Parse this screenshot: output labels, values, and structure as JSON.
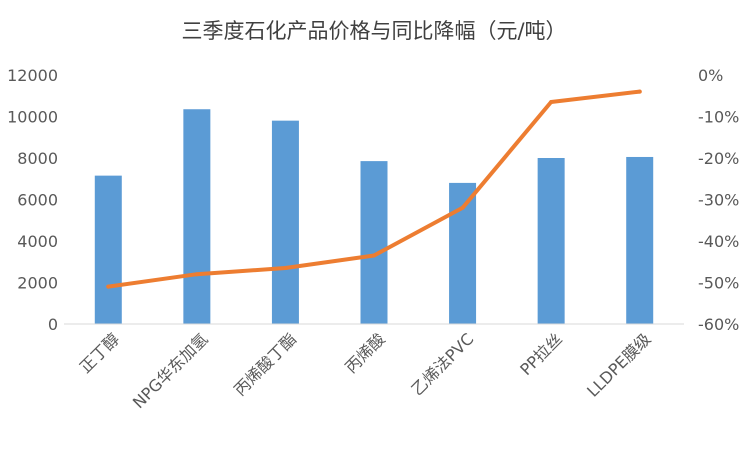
{
  "chart_data": {
    "type": "bar",
    "title": "三季度石化产品价格与同比降幅（元/吨）",
    "categories": [
      "正丁醇",
      "NPG华东加氢",
      "丙烯酸丁酯",
      "丙烯酸",
      "乙烯法PVC",
      "PP拉丝",
      "LLDPE膜级"
    ],
    "series": [
      {
        "name": "价格",
        "type": "bar",
        "axis": "left",
        "color": "#5B9BD5",
        "values": [
          7150,
          10350,
          9800,
          7850,
          6800,
          8000,
          8050
        ]
      },
      {
        "name": "同比降幅",
        "type": "line",
        "axis": "right",
        "color": "#ED7D31",
        "values": [
          -51,
          -48,
          -46.5,
          -43.5,
          -32,
          -6.5,
          -4
        ]
      }
    ],
    "y_left": {
      "min": 0,
      "max": 12000,
      "ticks": [
        0,
        2000,
        4000,
        6000,
        8000,
        10000,
        12000
      ],
      "tick_labels": [
        "0",
        "2000",
        "4000",
        "6000",
        "8000",
        "10000",
        "12000"
      ]
    },
    "y_right": {
      "min": -60,
      "max": 0,
      "ticks": [
        0,
        -10,
        -20,
        -30,
        -40,
        -50,
        -60
      ],
      "tick_labels": [
        "0%",
        "-10%",
        "-20%",
        "-30%",
        "-40%",
        "-50%",
        "-60%"
      ]
    },
    "grid": false,
    "legend": "none"
  }
}
